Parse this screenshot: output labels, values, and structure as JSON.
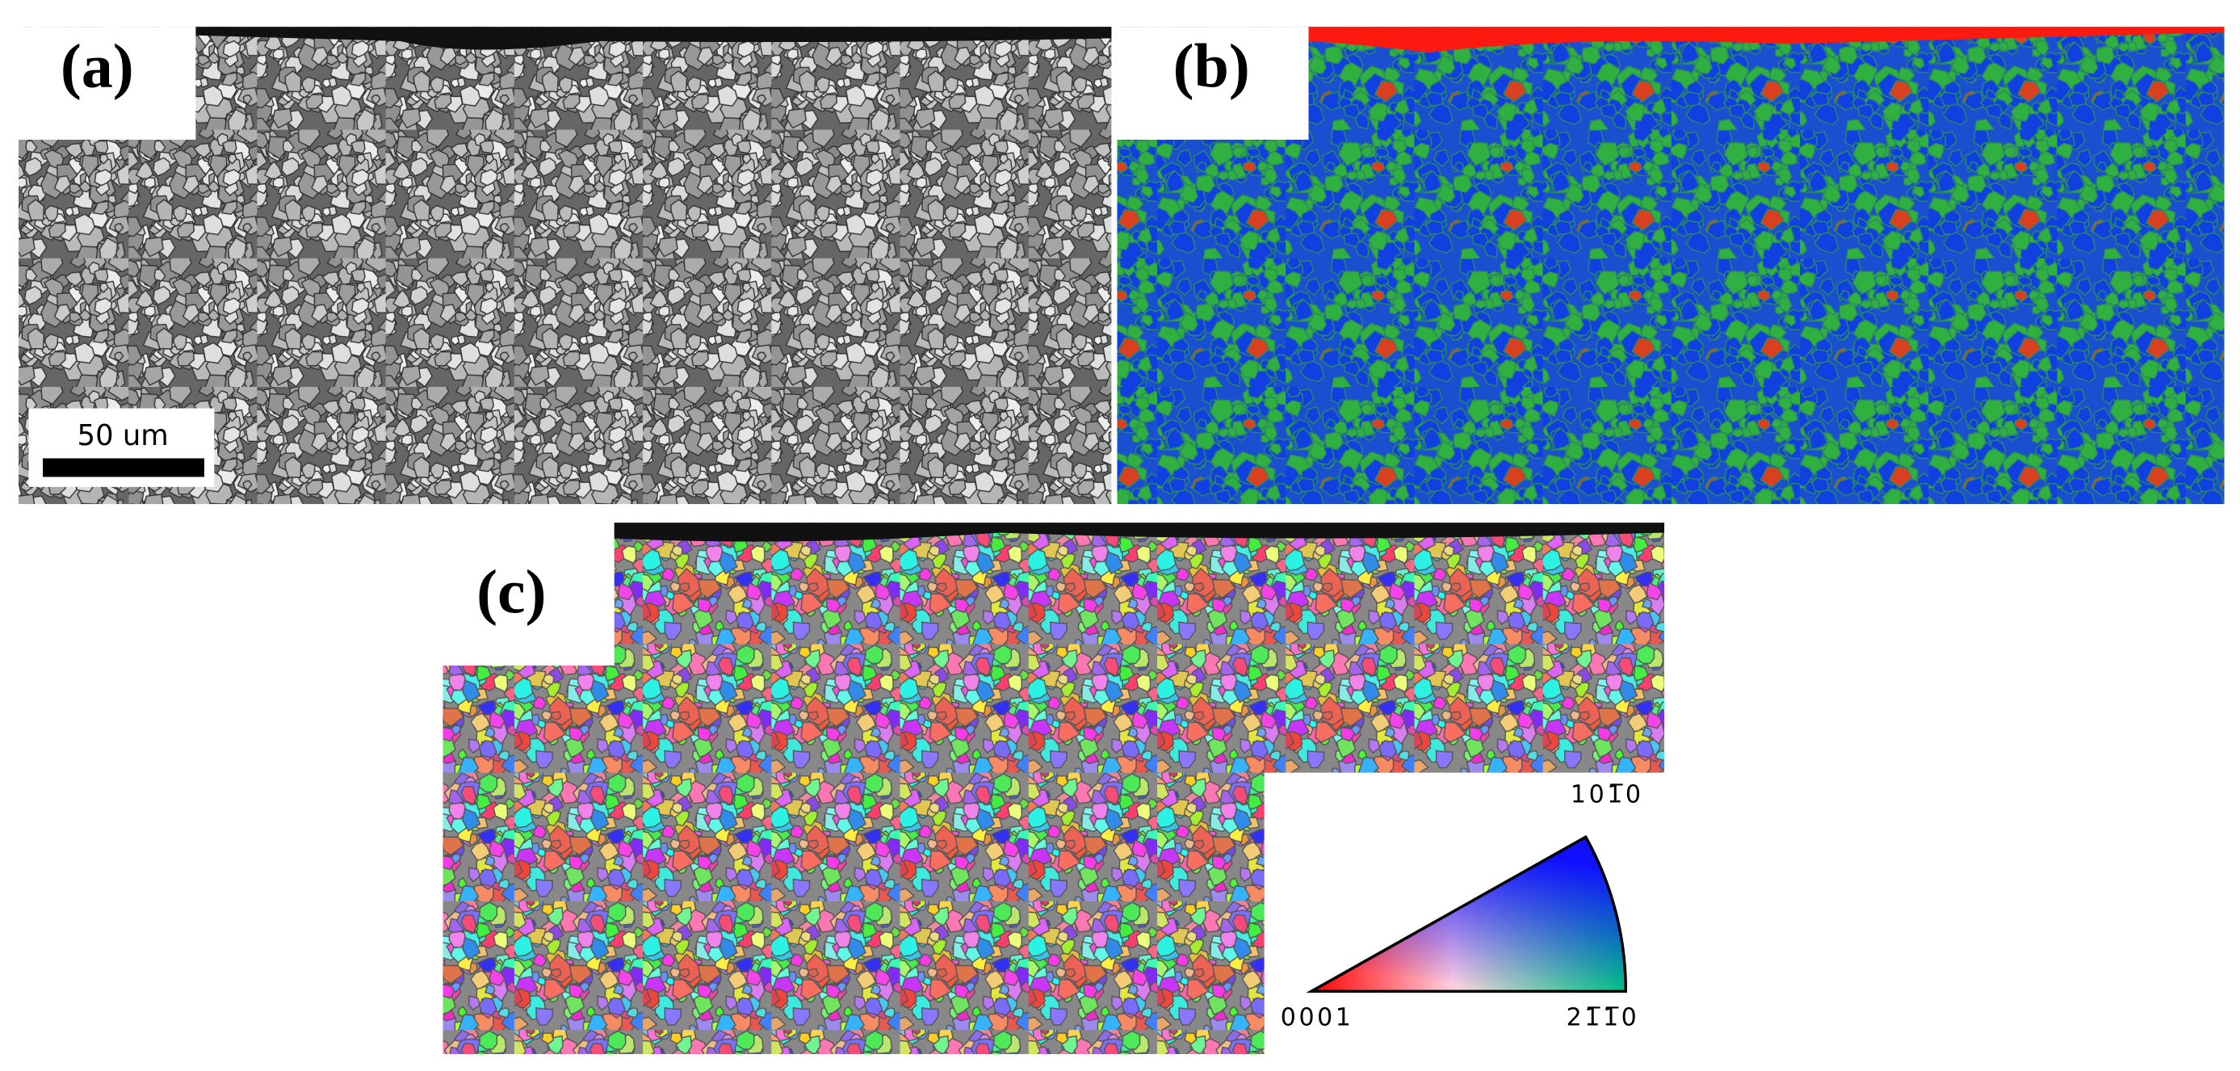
{
  "panels": {
    "a": {
      "label": "(a)",
      "scale_bar": "50 um"
    },
    "b": {
      "label": "(b)"
    },
    "c": {
      "label": "(c)",
      "legend": {
        "top": "101̅0",
        "left": "0001",
        "right": "21̅1̅0"
      }
    }
  }
}
